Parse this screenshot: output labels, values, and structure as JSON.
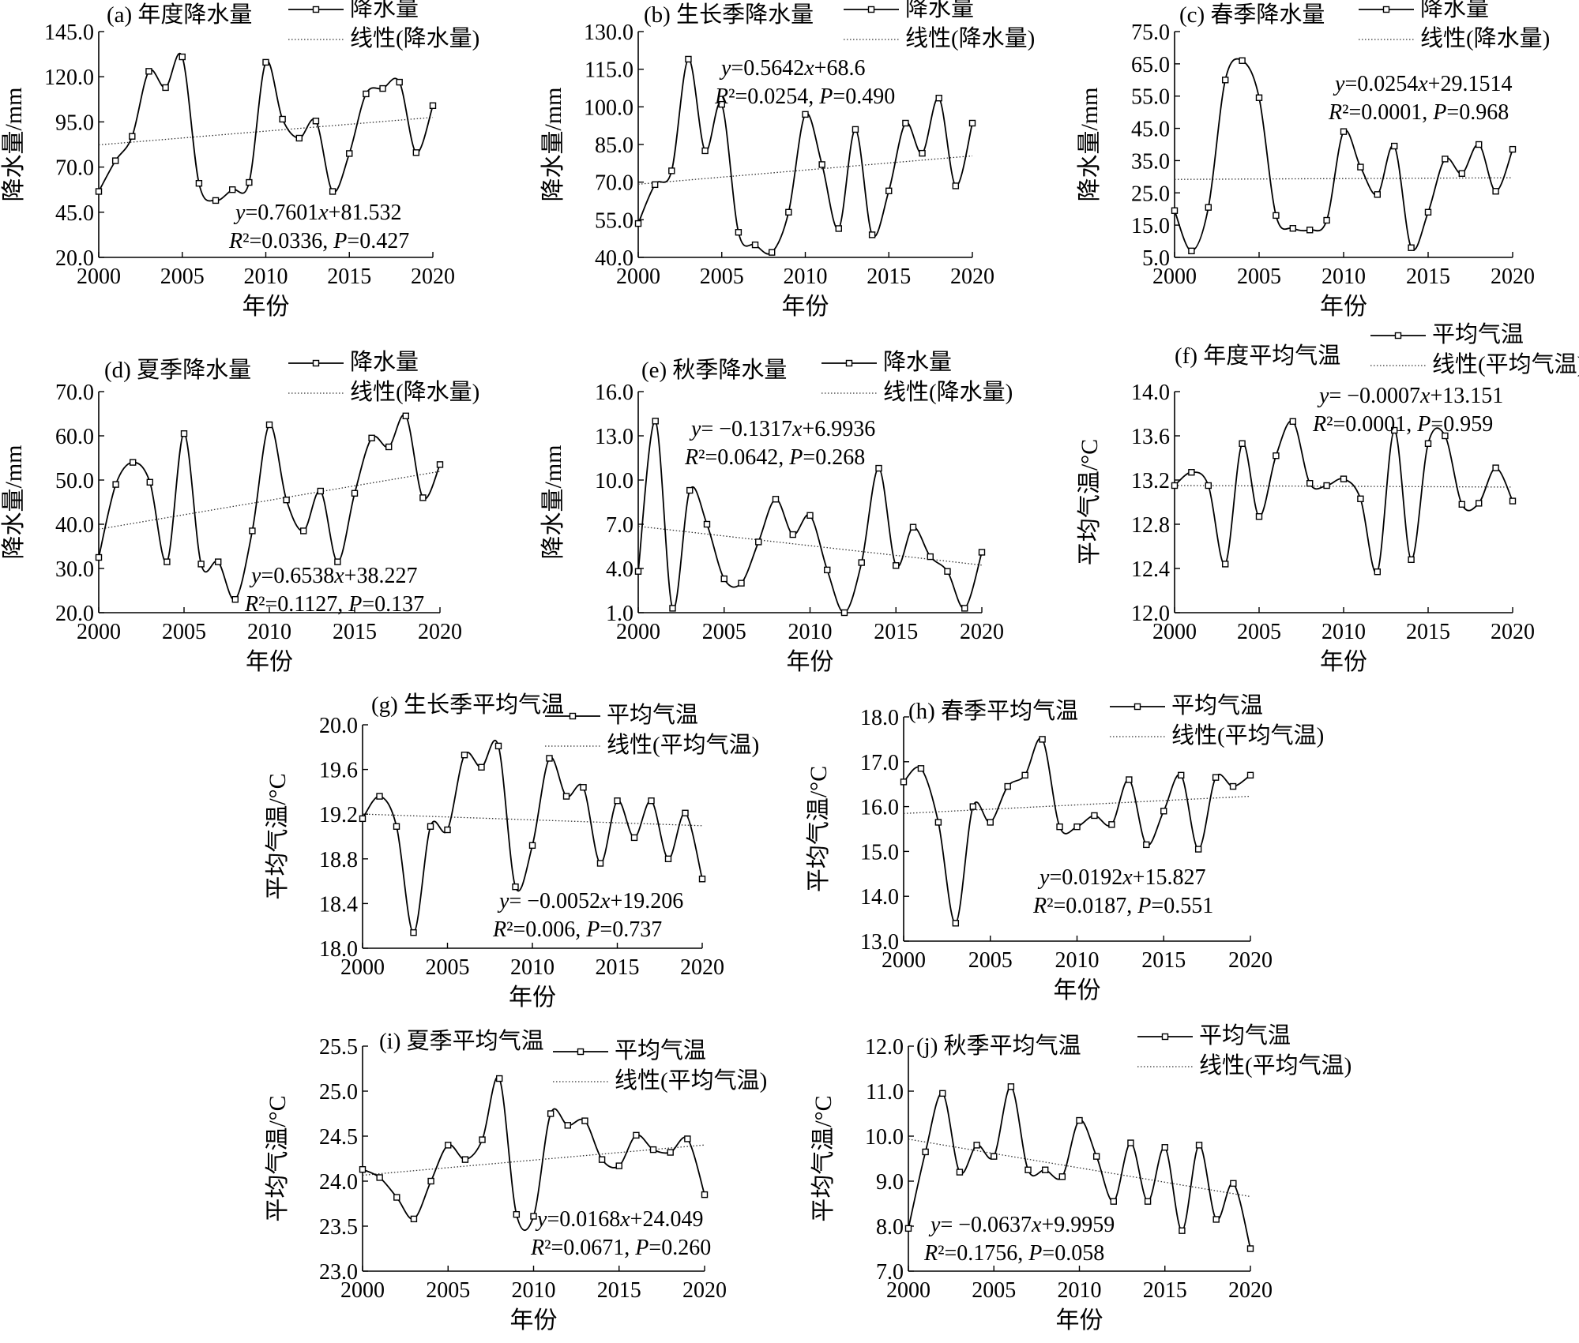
{
  "colors": {
    "line": "#000000",
    "trend": "#333333",
    "background": "#ffffff"
  },
  "chart_data": [
    {
      "id": "a",
      "type": "line",
      "title": "(a) 年度降水量",
      "xlabel": "年份",
      "ylabel": "降水量/mm",
      "xlim": [
        2000,
        2020
      ],
      "ylim": [
        20,
        145
      ],
      "yticks": [
        "20.0",
        "45.0",
        "70.0",
        "95.0",
        "120.0",
        "145.0"
      ],
      "xticks": [
        "2000",
        "2005",
        "2010",
        "2015",
        "2020"
      ],
      "series": [
        {
          "name": "降水量",
          "x": [
            2000,
            2001,
            2002,
            2003,
            2004,
            2005,
            2006,
            2007,
            2008,
            2009,
            2010,
            2011,
            2012,
            2013,
            2014,
            2015,
            2016,
            2017,
            2018,
            2019,
            2020
          ],
          "values": [
            56.5,
            73.5,
            87,
            123,
            114,
            131,
            61,
            51.5,
            57.5,
            61.5,
            128,
            96.5,
            86,
            95.5,
            56.5,
            77.5,
            110.5,
            113.5,
            117,
            78,
            104
          ]
        },
        {
          "name": "线性(降水量)",
          "type": "trend",
          "slope": 0.7601,
          "intercept": 81.532
        }
      ],
      "equation": "y=0.7601x+81.532",
      "stats": "R²=0.0336, P=0.427",
      "legend": "top-right"
    },
    {
      "id": "b",
      "type": "line",
      "title": "(b) 生长季降水量",
      "xlabel": "年份",
      "ylabel": "降水量/mm",
      "xlim": [
        2000,
        2020
      ],
      "ylim": [
        40,
        130
      ],
      "yticks": [
        "40.0",
        "55.0",
        "70.0",
        "85.0",
        "100.0",
        "115.0",
        "130.0"
      ],
      "xticks": [
        "2000",
        "2005",
        "2010",
        "2015",
        "2020"
      ],
      "series": [
        {
          "name": "降水量",
          "x": [
            2000,
            2001,
            2002,
            2003,
            2004,
            2005,
            2006,
            2007,
            2008,
            2009,
            2010,
            2011,
            2012,
            2013,
            2014,
            2015,
            2016,
            2017,
            2018,
            2019,
            2020
          ],
          "values": [
            53.5,
            69,
            74.5,
            119,
            82.5,
            101,
            50,
            45,
            42,
            58,
            97,
            77,
            51.5,
            91,
            49,
            66.5,
            93.5,
            81.5,
            103.5,
            68.5,
            93.5
          ]
        },
        {
          "name": "线性(降水量)",
          "type": "trend",
          "slope": 0.5642,
          "intercept": 68.6
        }
      ],
      "equation": "y=0.5642x+68.6",
      "stats": "R²=0.0254, P=0.490",
      "legend": "top-right"
    },
    {
      "id": "c",
      "type": "line",
      "title": "(c) 春季降水量",
      "xlabel": "年份",
      "ylabel": "降水量/mm",
      "xlim": [
        2000,
        2020
      ],
      "ylim": [
        5,
        75
      ],
      "yticks": [
        "5.0",
        "15.0",
        "25.0",
        "35.0",
        "45.0",
        "55.0",
        "65.0",
        "75.0"
      ],
      "xticks": [
        "2000",
        "2005",
        "2010",
        "2015",
        "2020"
      ],
      "series": [
        {
          "name": "降水量",
          "x": [
            2000,
            2001,
            2002,
            2003,
            2004,
            2005,
            2006,
            2007,
            2008,
            2009,
            2010,
            2011,
            2012,
            2013,
            2014,
            2015,
            2016,
            2017,
            2018,
            2019,
            2020
          ],
          "values": [
            19.5,
            7,
            20.5,
            60,
            66,
            54.5,
            18,
            14,
            13.5,
            16.5,
            44,
            33,
            24.5,
            39.5,
            8,
            19,
            35.5,
            31,
            40,
            25.5,
            38.5
          ]
        },
        {
          "name": "线性(降水量)",
          "type": "trend",
          "slope": 0.0254,
          "intercept": 29.1514
        }
      ],
      "equation": "y=0.0254x+29.1514",
      "stats": "R²=0.0001, P=0.968",
      "legend": "top-right"
    },
    {
      "id": "d",
      "type": "line",
      "title": "(d) 夏季降水量",
      "xlabel": "年份",
      "ylabel": "降水量/mm",
      "xlim": [
        2000,
        2020
      ],
      "ylim": [
        20,
        70
      ],
      "yticks": [
        "20.0",
        "30.0",
        "40.0",
        "50.0",
        "60.0",
        "70.0"
      ],
      "xticks": [
        "2000",
        "2005",
        "2010",
        "2015",
        "2020"
      ],
      "series": [
        {
          "name": "降水量",
          "x": [
            2000,
            2001,
            2002,
            2003,
            2004,
            2005,
            2006,
            2007,
            2008,
            2009,
            2010,
            2011,
            2012,
            2013,
            2014,
            2015,
            2016,
            2017,
            2018,
            2019,
            2020
          ],
          "values": [
            32.5,
            49,
            54,
            49.5,
            31.5,
            60.5,
            31,
            31.5,
            23,
            38.5,
            62.5,
            45.5,
            38.5,
            47.5,
            31.5,
            47,
            59.5,
            57.5,
            64.5,
            46,
            53.5
          ]
        },
        {
          "name": "线性(降水量)",
          "type": "trend",
          "slope": 0.6538,
          "intercept": 38.227
        }
      ],
      "equation": "y=0.6538x+38.227",
      "stats": "R²=0.1127, P=0.137",
      "legend": "top-right"
    },
    {
      "id": "e",
      "type": "line",
      "title": "(e) 秋季降水量",
      "xlabel": "年份",
      "ylabel": "降水量/mm",
      "xlim": [
        2000,
        2020
      ],
      "ylim": [
        1,
        16
      ],
      "yticks": [
        "1.0",
        "4.0",
        "7.0",
        "10.0",
        "13.0",
        "16.0"
      ],
      "xticks": [
        "2000",
        "2005",
        "2010",
        "2015",
        "2020"
      ],
      "series": [
        {
          "name": "降水量",
          "x": [
            2000,
            2001,
            2002,
            2003,
            2004,
            2005,
            2006,
            2007,
            2008,
            2009,
            2010,
            2011,
            2012,
            2013,
            2014,
            2015,
            2016,
            2017,
            2018,
            2019,
            2020
          ],
          "values": [
            3.8,
            14,
            1.3,
            9.3,
            7,
            3.3,
            3,
            5.8,
            8.7,
            6.3,
            7.6,
            3.9,
            1,
            4.4,
            10.8,
            4.2,
            6.8,
            4.8,
            3.8,
            1.3,
            5.1
          ]
        },
        {
          "name": "线性(降水量)",
          "type": "trend",
          "slope": -0.1317,
          "intercept": 6.9936
        }
      ],
      "equation": "y= −0.1317x+6.9936",
      "stats": "R²=0.0642, P=0.268",
      "legend": "top-right"
    },
    {
      "id": "f",
      "type": "line",
      "title": "(f) 年度平均气温",
      "xlabel": "年份",
      "ylabel": "平均气温/°C",
      "xlim": [
        2000,
        2020
      ],
      "ylim": [
        12,
        14
      ],
      "yticks": [
        "12.0",
        "12.4",
        "12.8",
        "13.2",
        "13.6",
        "14.0"
      ],
      "xticks": [
        "2000",
        "2005",
        "2010",
        "2015",
        "2020"
      ],
      "series": [
        {
          "name": "平均气温",
          "x": [
            2000,
            2001,
            2002,
            2003,
            2004,
            2005,
            2006,
            2007,
            2008,
            2009,
            2010,
            2011,
            2012,
            2013,
            2014,
            2015,
            2016,
            2017,
            2018,
            2019,
            2020
          ],
          "values": [
            13.15,
            13.27,
            13.15,
            12.44,
            13.53,
            12.87,
            13.42,
            13.73,
            13.17,
            13.15,
            13.21,
            13.03,
            12.37,
            13.65,
            12.48,
            13.53,
            13.6,
            12.98,
            12.99,
            13.31,
            13.01
          ]
        },
        {
          "name": "线性(平均气温)",
          "type": "trend",
          "slope": -0.0007,
          "intercept": 13.151
        }
      ],
      "equation": "y= −0.0007x+13.151",
      "stats": "R²=0.0001, P=0.959",
      "legend": "top-right"
    },
    {
      "id": "g",
      "type": "line",
      "title": "(g) 生长季平均气温",
      "xlabel": "年份",
      "ylabel": "平均气温/°C",
      "xlim": [
        2000,
        2020
      ],
      "ylim": [
        18,
        20
      ],
      "yticks": [
        "18.0",
        "18.4",
        "18.8",
        "19.2",
        "19.6",
        "20.0"
      ],
      "xticks": [
        "2000",
        "2005",
        "2010",
        "2015",
        "2020"
      ],
      "series": [
        {
          "name": "平均气温",
          "x": [
            2000,
            2001,
            2002,
            2003,
            2004,
            2005,
            2006,
            2007,
            2008,
            2009,
            2010,
            2011,
            2012,
            2013,
            2014,
            2015,
            2016,
            2017,
            2018,
            2019,
            2020
          ],
          "values": [
            19.16,
            19.36,
            19.09,
            18.14,
            19.09,
            19.06,
            19.73,
            19.62,
            19.81,
            18.55,
            18.92,
            19.7,
            19.36,
            19.44,
            18.76,
            19.32,
            18.99,
            19.32,
            18.8,
            19.21,
            18.62
          ]
        },
        {
          "name": "线性(平均气温)",
          "type": "trend",
          "slope": -0.0052,
          "intercept": 19.206
        }
      ],
      "equation": "y= −0.0052x+19.206",
      "stats": "R²=0.006, P=0.737",
      "legend": "top-right"
    },
    {
      "id": "h",
      "type": "line",
      "title": "(h) 春季平均气温",
      "xlabel": "年份",
      "ylabel": "平均气温/°C",
      "xlim": [
        2000,
        2020
      ],
      "ylim": [
        13,
        18
      ],
      "yticks": [
        "13.0",
        "14.0",
        "15.0",
        "16.0",
        "17.0",
        "18.0"
      ],
      "xticks": [
        "2000",
        "2005",
        "2010",
        "2015",
        "2020"
      ],
      "series": [
        {
          "name": "平均气温",
          "x": [
            2000,
            2001,
            2002,
            2003,
            2004,
            2005,
            2006,
            2007,
            2008,
            2009,
            2010,
            2011,
            2012,
            2013,
            2014,
            2015,
            2016,
            2017,
            2018,
            2019,
            2020
          ],
          "values": [
            16.55,
            16.85,
            15.65,
            13.4,
            16,
            15.65,
            16.45,
            16.7,
            17.5,
            15.55,
            15.55,
            15.8,
            15.6,
            16.6,
            15.15,
            15.9,
            16.7,
            15.05,
            16.65,
            16.45,
            16.7
          ]
        },
        {
          "name": "线性(平均气温)",
          "type": "trend",
          "slope": 0.0192,
          "intercept": 15.827
        }
      ],
      "equation": "y=0.0192x+15.827",
      "stats": "R²=0.0187, P=0.551",
      "legend": "top-right"
    },
    {
      "id": "i",
      "type": "line",
      "title": "(i) 夏季平均气温",
      "xlabel": "年份",
      "ylabel": "平均气温/°C",
      "xlim": [
        2000,
        2020
      ],
      "ylim": [
        23,
        25.5
      ],
      "yticks": [
        "23.0",
        "23.5",
        "24.0",
        "24.5",
        "25.0",
        "25.5"
      ],
      "xticks": [
        "2000",
        "2005",
        "2010",
        "2015",
        "2020"
      ],
      "series": [
        {
          "name": "平均气温",
          "x": [
            2000,
            2001,
            2002,
            2003,
            2004,
            2005,
            2006,
            2007,
            2008,
            2009,
            2010,
            2011,
            2012,
            2013,
            2014,
            2015,
            2016,
            2017,
            2018,
            2019,
            2020
          ],
          "values": [
            24.13,
            24.04,
            23.82,
            23.58,
            24,
            24.4,
            24.24,
            24.46,
            25.14,
            23.63,
            23.61,
            24.75,
            24.62,
            24.67,
            24.24,
            24.17,
            24.51,
            24.35,
            24.32,
            24.47,
            23.85
          ]
        },
        {
          "name": "线性(平均气温)",
          "type": "trend",
          "slope": 0.0168,
          "intercept": 24.049
        }
      ],
      "equation": "y=0.0168x+24.049",
      "stats": "R²=0.0671, P=0.260",
      "legend": "top-right"
    },
    {
      "id": "j",
      "type": "line",
      "title": "(j) 秋季平均气温",
      "xlabel": "年份",
      "ylabel": "平均气温/°C",
      "xlim": [
        2000,
        2020
      ],
      "ylim": [
        7,
        12
      ],
      "yticks": [
        "7.0",
        "8.0",
        "9.0",
        "10.0",
        "11.0",
        "12.0"
      ],
      "xticks": [
        "2000",
        "2005",
        "2010",
        "2015",
        "2020"
      ],
      "series": [
        {
          "name": "平均气温",
          "x": [
            2000,
            2001,
            2002,
            2003,
            2004,
            2005,
            2006,
            2007,
            2008,
            2009,
            2010,
            2011,
            2012,
            2013,
            2014,
            2015,
            2016,
            2017,
            2018,
            2019,
            2020
          ],
          "values": [
            7.95,
            9.65,
            10.95,
            9.2,
            9.8,
            9.55,
            11.1,
            9.25,
            9.25,
            9.1,
            10.35,
            9.55,
            8.55,
            9.85,
            8.55,
            9.75,
            7.9,
            9.8,
            8.15,
            8.95,
            7.5
          ]
        },
        {
          "name": "线性(平均气温)",
          "type": "trend",
          "slope": -0.0637,
          "intercept": 9.9959
        }
      ],
      "equation": "y= −0.0637x+9.9959",
      "stats": "R²=0.1756, P=0.058",
      "legend": "top-right"
    }
  ]
}
